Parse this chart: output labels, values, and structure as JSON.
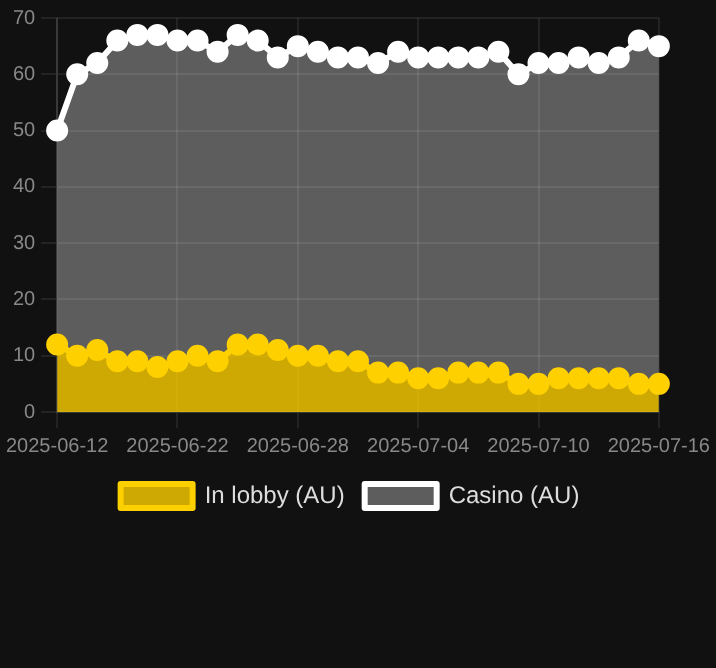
{
  "chart_data": {
    "type": "area",
    "categories": [
      "2025-06-12",
      null,
      null,
      null,
      null,
      null,
      "2025-06-22",
      null,
      null,
      null,
      null,
      null,
      "2025-06-28",
      null,
      null,
      null,
      null,
      null,
      "2025-07-04",
      null,
      null,
      null,
      null,
      null,
      "2025-07-10",
      null,
      null,
      null,
      null,
      null,
      "2025-07-16"
    ],
    "series": [
      {
        "name": "In lobby (AU)",
        "color": "#ffd000",
        "values": [
          12,
          10,
          11,
          9,
          9,
          8,
          9,
          10,
          9,
          12,
          12,
          11,
          10,
          10,
          9,
          9,
          7,
          7,
          6,
          6,
          7,
          7,
          7,
          5,
          5,
          6,
          6,
          6,
          6,
          5,
          5
        ]
      },
      {
        "name": "Casino (AU)",
        "color": "#ffffff",
        "values": [
          50,
          60,
          62,
          66,
          67,
          67,
          66,
          66,
          64,
          67,
          66,
          63,
          65,
          64,
          63,
          63,
          62,
          64,
          63,
          63,
          63,
          63,
          64,
          60,
          62,
          62,
          63,
          62,
          63,
          66,
          65
        ]
      }
    ],
    "ylim": [
      0,
      70
    ],
    "yticks": [
      0,
      10,
      20,
      30,
      40,
      50,
      60,
      70
    ],
    "grid": true,
    "legend": "bottom",
    "marker": "circle"
  }
}
